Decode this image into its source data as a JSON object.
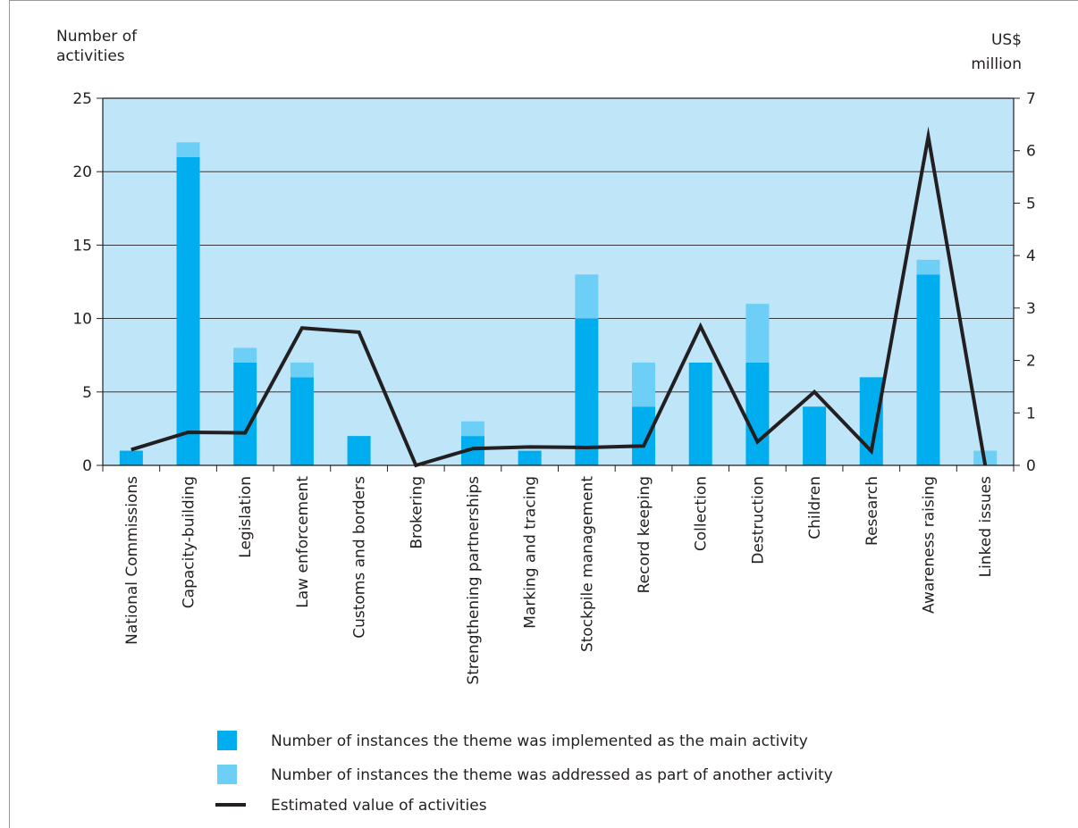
{
  "chart_data": {
    "type": "bar",
    "categories": [
      "National Commissions",
      "Capacity-building",
      "Legislation",
      "Law enforcement",
      "Customs and borders",
      "Brokering",
      "Strengthening partnerships",
      "Marking and tracing",
      "Stockpile management",
      "Record keeping",
      "Collection",
      "Destruction",
      "Children",
      "Research",
      "Awareness raising",
      "Linked issues"
    ],
    "series": [
      {
        "name": "Number of instances the theme was implemented as the main activity",
        "kind": "bar-stack-bottom",
        "axis": "left",
        "color": "#00aeef",
        "values": [
          1,
          21,
          7,
          6,
          2,
          0,
          2,
          1,
          10,
          4,
          7,
          7,
          4,
          6,
          13,
          0
        ]
      },
      {
        "name": "Number of instances the theme was addressed as part of another activity",
        "kind": "bar-stack-top",
        "axis": "left",
        "color": "#6dcff6",
        "values": [
          0,
          1,
          1,
          1,
          0,
          0,
          1,
          0,
          3,
          3,
          0,
          4,
          0,
          0,
          1,
          1
        ]
      },
      {
        "name": "Estimated value of activities",
        "kind": "line",
        "axis": "right",
        "color": "#231f20",
        "values": [
          0.3,
          0.63,
          0.62,
          2.62,
          2.54,
          0.0,
          0.32,
          0.35,
          0.34,
          0.37,
          2.65,
          0.45,
          1.4,
          0.27,
          6.27,
          0.0
        ]
      }
    ],
    "ylabel_left": "Number of activities",
    "ylabel_right": "US$ million",
    "ylim_left": [
      0,
      25
    ],
    "yticks_left": [
      0,
      5,
      10,
      15,
      20,
      25
    ],
    "ylim_right": [
      0,
      7
    ],
    "yticks_right": [
      0,
      1,
      2,
      3,
      4,
      5,
      6,
      7
    ],
    "plot_background": "#bfe6f8",
    "grid": true,
    "legend_position": "bottom"
  }
}
